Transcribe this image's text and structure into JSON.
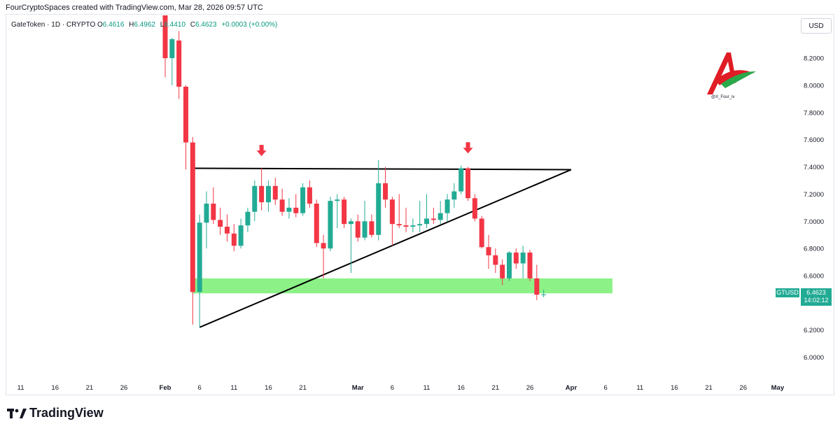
{
  "header": {
    "credit": "FourCryptoSpaces created with TradingView.com, Mar 28, 2026 09:57 UTC"
  },
  "legend": {
    "symbol": "GateToken · 1D · CRYPTO",
    "open_label": "O",
    "open": "6.4616",
    "high_label": "H",
    "high": "6.4962",
    "low_label": "L",
    "low": "6.4410",
    "close_label": "C",
    "close": "6.4623",
    "change": "+0.0003 (+0.00%)"
  },
  "currency": "USD",
  "last_price": {
    "ticker": "GTUSD",
    "price": "6.4623",
    "countdown": "14:02:12"
  },
  "watermark": {
    "handle": "@X_Four_iv"
  },
  "branding": {
    "name": "TradingView"
  },
  "colors": {
    "up": "#22ab94",
    "down": "#f23645",
    "support_zone": "#7ff07a",
    "trendline": "#000000",
    "arrow": "#f23645"
  },
  "chart_data": {
    "type": "candlestick",
    "symbol": "GTUSD",
    "timeframe": "1D",
    "y_axis": {
      "min": 5.9,
      "max": 8.35,
      "ticks": [
        "6.0000",
        "6.2000",
        "6.4000",
        "6.6000",
        "6.8000",
        "7.0000",
        "7.2000",
        "7.4000",
        "7.6000",
        "7.8000",
        "8.0000",
        "8.2000"
      ],
      "position": "right"
    },
    "x_axis": {
      "start_date": "2026-01-09",
      "end_date": "2026-05-06",
      "ticks": [
        {
          "label": "11",
          "date": "2026-01-11"
        },
        {
          "label": "16",
          "date": "2026-01-16"
        },
        {
          "label": "21",
          "date": "2026-01-21"
        },
        {
          "label": "26",
          "date": "2026-01-26"
        },
        {
          "label": "Feb",
          "date": "2026-02-01",
          "bold": true
        },
        {
          "label": "6",
          "date": "2026-02-06"
        },
        {
          "label": "11",
          "date": "2026-02-11"
        },
        {
          "label": "16",
          "date": "2026-02-16"
        },
        {
          "label": "21",
          "date": "2026-02-21"
        },
        {
          "label": "Mar",
          "date": "2026-03-01",
          "bold": true
        },
        {
          "label": "6",
          "date": "2026-03-06"
        },
        {
          "label": "11",
          "date": "2026-03-11"
        },
        {
          "label": "16",
          "date": "2026-03-16"
        },
        {
          "label": "21",
          "date": "2026-03-21"
        },
        {
          "label": "26",
          "date": "2026-03-26"
        },
        {
          "label": "Apr",
          "date": "2026-04-01",
          "bold": true
        },
        {
          "label": "6",
          "date": "2026-04-06"
        },
        {
          "label": "11",
          "date": "2026-04-11"
        },
        {
          "label": "16",
          "date": "2026-04-16"
        },
        {
          "label": "21",
          "date": "2026-04-21"
        },
        {
          "label": "26",
          "date": "2026-04-26"
        },
        {
          "label": "May",
          "date": "2026-05-01",
          "bold": true
        }
      ]
    },
    "candles": [
      {
        "d": "2026-02-01",
        "o": 8.8,
        "h": 8.9,
        "l": 8.06,
        "c": 8.2
      },
      {
        "d": "2026-02-02",
        "o": 8.2,
        "h": 8.35,
        "l": 8.0,
        "c": 8.34
      },
      {
        "d": "2026-02-03",
        "o": 8.33,
        "h": 8.4,
        "l": 7.9,
        "c": 7.99
      },
      {
        "d": "2026-02-04",
        "o": 7.99,
        "h": 8.0,
        "l": 7.38,
        "c": 7.58
      },
      {
        "d": "2026-02-05",
        "o": 7.58,
        "h": 7.62,
        "l": 6.24,
        "c": 6.48
      },
      {
        "d": "2026-02-06",
        "o": 6.48,
        "h": 7.05,
        "l": 6.22,
        "c": 6.99
      },
      {
        "d": "2026-02-07",
        "o": 6.99,
        "h": 7.22,
        "l": 6.8,
        "c": 7.13
      },
      {
        "d": "2026-02-08",
        "o": 7.13,
        "h": 7.25,
        "l": 6.98,
        "c": 7.01
      },
      {
        "d": "2026-02-09",
        "o": 7.01,
        "h": 7.1,
        "l": 6.9,
        "c": 6.96
      },
      {
        "d": "2026-02-10",
        "o": 6.96,
        "h": 7.05,
        "l": 6.85,
        "c": 6.91
      },
      {
        "d": "2026-02-11",
        "o": 6.91,
        "h": 6.98,
        "l": 6.78,
        "c": 6.82
      },
      {
        "d": "2026-02-12",
        "o": 6.82,
        "h": 7.02,
        "l": 6.8,
        "c": 6.97
      },
      {
        "d": "2026-02-13",
        "o": 6.97,
        "h": 7.1,
        "l": 6.92,
        "c": 7.07
      },
      {
        "d": "2026-02-14",
        "o": 7.07,
        "h": 7.3,
        "l": 7.0,
        "c": 7.26
      },
      {
        "d": "2026-02-15",
        "o": 7.26,
        "h": 7.39,
        "l": 7.08,
        "c": 7.14
      },
      {
        "d": "2026-02-16",
        "o": 7.14,
        "h": 7.3,
        "l": 7.07,
        "c": 7.26
      },
      {
        "d": "2026-02-17",
        "o": 7.26,
        "h": 7.32,
        "l": 7.12,
        "c": 7.16
      },
      {
        "d": "2026-02-18",
        "o": 7.16,
        "h": 7.24,
        "l": 7.04,
        "c": 7.07
      },
      {
        "d": "2026-02-19",
        "o": 7.07,
        "h": 7.17,
        "l": 7.02,
        "c": 7.1
      },
      {
        "d": "2026-02-20",
        "o": 7.1,
        "h": 7.2,
        "l": 7.03,
        "c": 7.06
      },
      {
        "d": "2026-02-21",
        "o": 7.06,
        "h": 7.28,
        "l": 7.04,
        "c": 7.25
      },
      {
        "d": "2026-02-22",
        "o": 7.25,
        "h": 7.3,
        "l": 7.1,
        "c": 7.13
      },
      {
        "d": "2026-02-23",
        "o": 7.13,
        "h": 7.16,
        "l": 6.81,
        "c": 6.84
      },
      {
        "d": "2026-02-24",
        "o": 6.84,
        "h": 6.9,
        "l": 6.58,
        "c": 6.8
      },
      {
        "d": "2026-02-25",
        "o": 6.8,
        "h": 7.18,
        "l": 6.78,
        "c": 7.15
      },
      {
        "d": "2026-02-26",
        "o": 7.15,
        "h": 7.2,
        "l": 6.95,
        "c": 7.16
      },
      {
        "d": "2026-02-27",
        "o": 7.16,
        "h": 7.18,
        "l": 6.95,
        "c": 6.98
      },
      {
        "d": "2026-02-28",
        "o": 6.98,
        "h": 7.02,
        "l": 6.62,
        "c": 7.0
      },
      {
        "d": "2026-03-01",
        "o": 7.0,
        "h": 7.05,
        "l": 6.85,
        "c": 6.88
      },
      {
        "d": "2026-03-02",
        "o": 6.88,
        "h": 7.15,
        "l": 6.86,
        "c": 7.0
      },
      {
        "d": "2026-03-03",
        "o": 7.0,
        "h": 7.05,
        "l": 6.88,
        "c": 6.9
      },
      {
        "d": "2026-03-04",
        "o": 6.9,
        "h": 7.45,
        "l": 6.86,
        "c": 7.28
      },
      {
        "d": "2026-03-05",
        "o": 7.28,
        "h": 7.4,
        "l": 7.1,
        "c": 7.16
      },
      {
        "d": "2026-03-06",
        "o": 7.16,
        "h": 7.18,
        "l": 6.82,
        "c": 6.98
      },
      {
        "d": "2026-03-07",
        "o": 6.98,
        "h": 7.2,
        "l": 6.95,
        "c": 6.97
      },
      {
        "d": "2026-03-08",
        "o": 6.97,
        "h": 7.1,
        "l": 6.92,
        "c": 6.96
      },
      {
        "d": "2026-03-09",
        "o": 6.96,
        "h": 7.02,
        "l": 6.92,
        "c": 6.97
      },
      {
        "d": "2026-03-10",
        "o": 6.97,
        "h": 7.15,
        "l": 6.92,
        "c": 6.98
      },
      {
        "d": "2026-03-11",
        "o": 6.98,
        "h": 7.2,
        "l": 6.95,
        "c": 7.02
      },
      {
        "d": "2026-03-12",
        "o": 7.02,
        "h": 7.1,
        "l": 6.98,
        "c": 7.01
      },
      {
        "d": "2026-03-13",
        "o": 7.01,
        "h": 7.15,
        "l": 6.98,
        "c": 7.06
      },
      {
        "d": "2026-03-14",
        "o": 7.06,
        "h": 7.2,
        "l": 7.0,
        "c": 7.16
      },
      {
        "d": "2026-03-15",
        "o": 7.16,
        "h": 7.28,
        "l": 7.1,
        "c": 7.22
      },
      {
        "d": "2026-03-16",
        "o": 7.22,
        "h": 7.41,
        "l": 7.2,
        "c": 7.39
      },
      {
        "d": "2026-03-17",
        "o": 7.39,
        "h": 7.4,
        "l": 7.15,
        "c": 7.17
      },
      {
        "d": "2026-03-18",
        "o": 7.17,
        "h": 7.2,
        "l": 7.0,
        "c": 7.02
      },
      {
        "d": "2026-03-19",
        "o": 7.02,
        "h": 7.04,
        "l": 6.8,
        "c": 6.81
      },
      {
        "d": "2026-03-20",
        "o": 6.81,
        "h": 6.9,
        "l": 6.65,
        "c": 6.75
      },
      {
        "d": "2026-03-21",
        "o": 6.75,
        "h": 6.8,
        "l": 6.62,
        "c": 6.68
      },
      {
        "d": "2026-03-22",
        "o": 6.68,
        "h": 6.72,
        "l": 6.53,
        "c": 6.58
      },
      {
        "d": "2026-03-23",
        "o": 6.58,
        "h": 6.78,
        "l": 6.56,
        "c": 6.77
      },
      {
        "d": "2026-03-24",
        "o": 6.77,
        "h": 6.8,
        "l": 6.65,
        "c": 6.69
      },
      {
        "d": "2026-03-25",
        "o": 6.69,
        "h": 6.82,
        "l": 6.58,
        "c": 6.77
      },
      {
        "d": "2026-03-26",
        "o": 6.77,
        "h": 6.79,
        "l": 6.56,
        "c": 6.58
      },
      {
        "d": "2026-03-27",
        "o": 6.58,
        "h": 6.68,
        "l": 6.42,
        "c": 6.46
      },
      {
        "d": "2026-03-28",
        "o": 6.4616,
        "h": 6.4962,
        "l": 6.441,
        "c": 6.4623
      }
    ],
    "drawings": {
      "resistance_line": {
        "from": {
          "d": "2026-02-05",
          "p": 7.39
        },
        "to": {
          "d": "2026-04-01",
          "p": 7.38
        }
      },
      "rising_trendline": {
        "from": {
          "d": "2026-02-06",
          "p": 6.22
        },
        "to": {
          "d": "2026-04-01",
          "p": 7.38
        }
      },
      "support_zone": {
        "from_date": "2026-02-05",
        "to_date": "2026-04-07",
        "low": 6.47,
        "high": 6.58
      },
      "arrows": [
        {
          "d": "2026-02-15",
          "p": 7.5
        },
        {
          "d": "2026-03-17",
          "p": 7.52
        }
      ]
    }
  }
}
